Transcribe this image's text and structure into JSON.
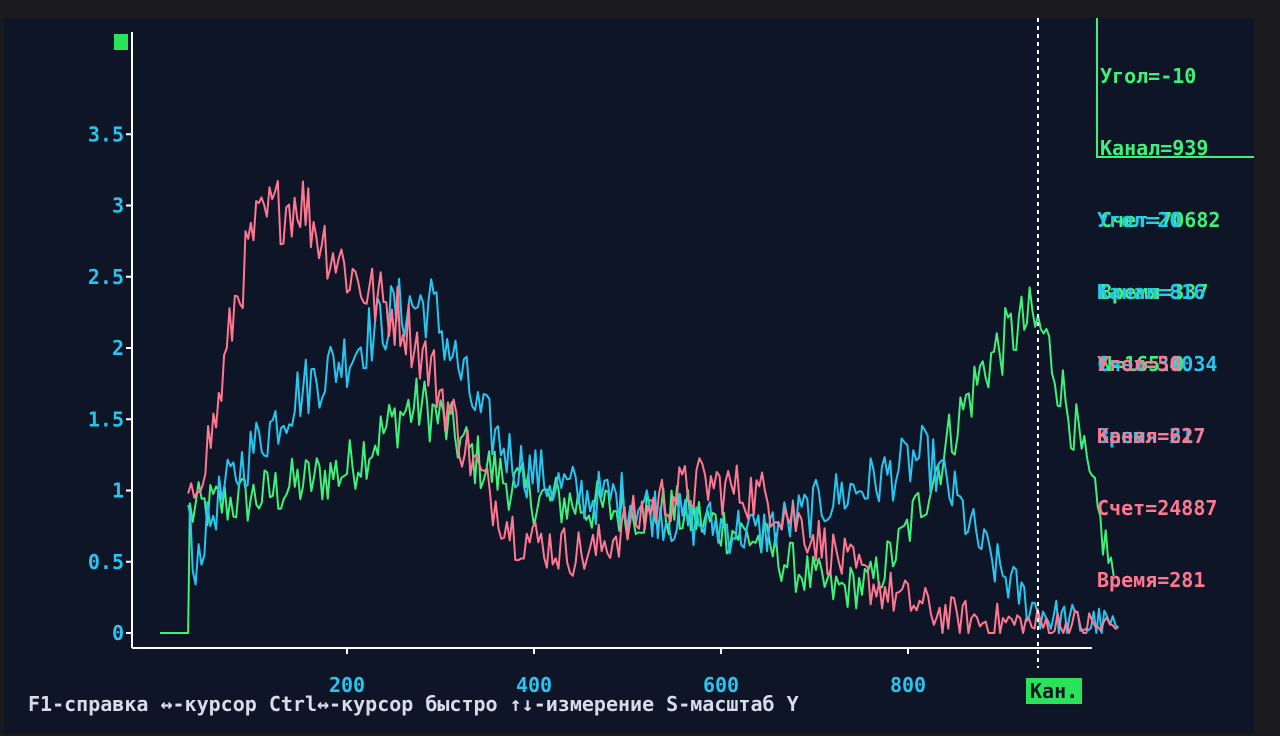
{
  "panels": {
    "green": [
      "Угол=-10",
      "Канал=939",
      "Счет=70682",
      "Время=337",
      "N=165.0"
    ],
    "blue": [
      "Угол=20",
      "Канал=816",
      "Счет=34034",
      "Время=217"
    ],
    "red": [
      "Угол=50",
      "Канал=627",
      "Счет=24887",
      "Время=281"
    ]
  },
  "help_bar": "F1-справка ↔-курсор Ctrl↔-курсор быстро ↑↓-измерение S-масштаб Y",
  "units_badge": "Кан.",
  "colors": {
    "background": "#0d1526",
    "axis": "#ffffff",
    "tick_labels": "#27c6f0",
    "green": "#3ff07a",
    "blue": "#27c6f0",
    "red": "#ff7790"
  },
  "chart_data": {
    "type": "line",
    "xlabel": "Кан.",
    "xlim": [
      0,
      1030
    ],
    "ylim": [
      0,
      4
    ],
    "x_ticks": [
      200,
      400,
      600,
      800
    ],
    "y_ticks": [
      0,
      0.5,
      1,
      1.5,
      2,
      2.5,
      3,
      3.5
    ],
    "y_tick_labels": [
      "0",
      "0.5",
      "1",
      "1.5",
      "2",
      "2.5",
      "3",
      "3.5"
    ],
    "cursor_x": 939,
    "grid": false,
    "series": [
      {
        "color": "green",
        "x": [
          0,
          30,
          32,
          60,
          100,
          150,
          200,
          230,
          260,
          280,
          300,
          340,
          400,
          450,
          500,
          550,
          600,
          640,
          680,
          720,
          760,
          790,
          820,
          850,
          880,
          910,
          930,
          945,
          960,
          980,
          1000,
          1020
        ],
        "y": [
          0,
          0,
          0.85,
          0.9,
          0.95,
          1.05,
          1.15,
          1.35,
          1.55,
          1.6,
          1.5,
          1.2,
          0.95,
          0.9,
          0.85,
          0.85,
          0.75,
          0.65,
          0.45,
          0.3,
          0.35,
          0.6,
          1.0,
          1.45,
          1.85,
          2.1,
          2.2,
          2.1,
          1.8,
          1.4,
          0.9,
          0.4
        ]
      },
      {
        "color": "blue",
        "x": [
          30,
          35,
          60,
          100,
          150,
          200,
          250,
          270,
          290,
          310,
          340,
          380,
          420,
          460,
          500,
          550,
          600,
          640,
          680,
          720,
          760,
          790,
          815,
          830,
          850,
          870,
          890,
          910,
          930,
          950,
          970,
          990,
          1010,
          1025
        ],
        "y": [
          0.9,
          0.45,
          0.9,
          1.3,
          1.7,
          1.95,
          2.25,
          2.3,
          2.3,
          2.0,
          1.55,
          1.2,
          1.05,
          0.95,
          0.95,
          0.8,
          0.75,
          0.7,
          0.8,
          0.95,
          1.05,
          1.15,
          1.25,
          1.15,
          0.95,
          0.7,
          0.5,
          0.35,
          0.2,
          0.12,
          0.08,
          0.06,
          0.05,
          0.04
        ]
      },
      {
        "color": "red",
        "x": [
          30,
          40,
          60,
          80,
          100,
          120,
          150,
          170,
          200,
          230,
          260,
          290,
          320,
          350,
          380,
          420,
          460,
          500,
          540,
          580,
          620,
          650,
          680,
          720,
          760,
          800,
          840,
          880,
          920,
          960,
          1000,
          1025
        ],
        "y": [
          0.8,
          1.1,
          1.5,
          2.3,
          2.8,
          2.95,
          3.05,
          2.8,
          2.55,
          2.35,
          2.2,
          1.85,
          1.4,
          1.0,
          0.7,
          0.6,
          0.55,
          0.75,
          0.95,
          1.05,
          1.0,
          0.95,
          0.8,
          0.55,
          0.35,
          0.22,
          0.12,
          0.08,
          0.06,
          0.05,
          0.04,
          0.04
        ]
      }
    ]
  }
}
